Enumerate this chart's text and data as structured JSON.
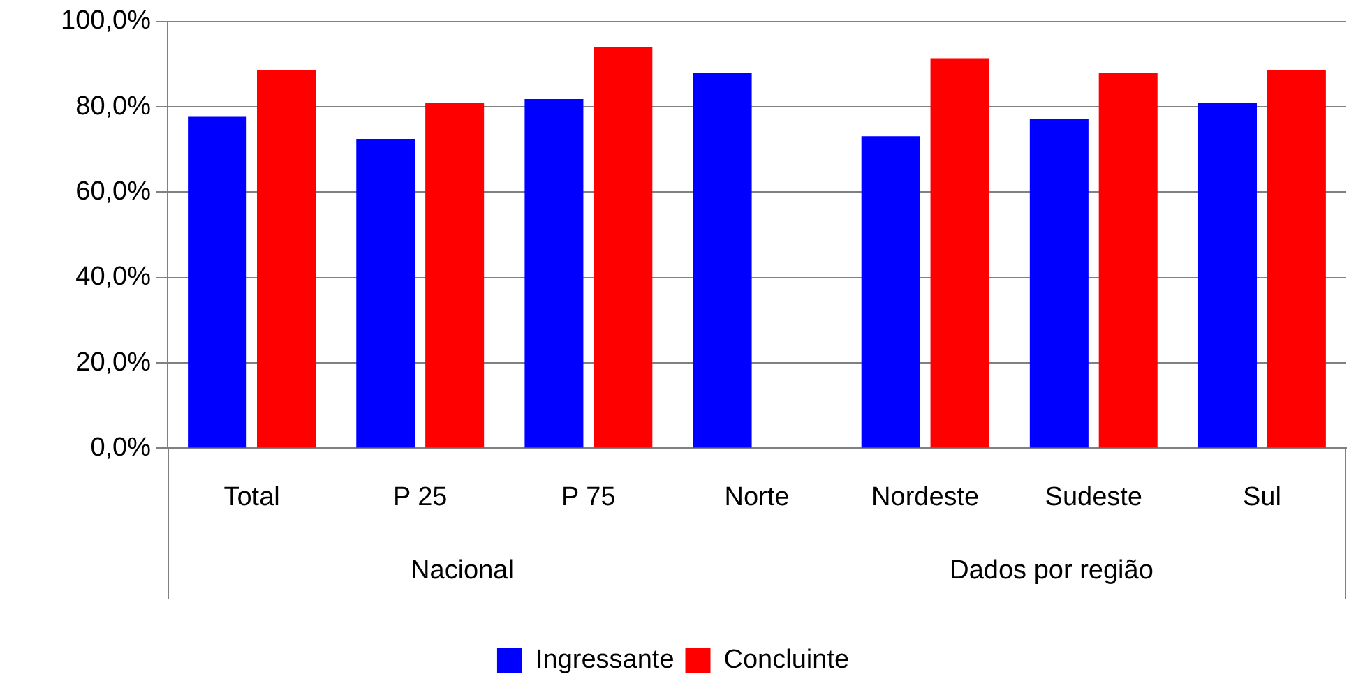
{
  "chart_data": {
    "type": "bar",
    "categories": [
      "Total",
      "P 25",
      "P 75",
      "Norte",
      "Nordeste",
      "Sudeste",
      "Sul"
    ],
    "series": [
      {
        "name": "Ingressante",
        "color": "#0000ff",
        "values": [
          77.8,
          72.5,
          81.8,
          88.0,
          73.1,
          77.2,
          80.9
        ]
      },
      {
        "name": "Concluinte",
        "color": "#ff0000",
        "values": [
          88.6,
          80.9,
          94.1,
          null,
          91.4,
          88.0,
          88.6
        ]
      }
    ],
    "ylim": [
      0,
      100
    ],
    "yticks": [
      {
        "value": 0,
        "label": "0,0%"
      },
      {
        "value": 20,
        "label": "20,0%"
      },
      {
        "value": 40,
        "label": "40,0%"
      },
      {
        "value": 60,
        "label": "60,0%"
      },
      {
        "value": 80,
        "label": "80,0%"
      },
      {
        "value": 100,
        "label": "100,0%"
      }
    ],
    "grid": "y",
    "legend": "bottom",
    "annotations": [
      "Nacional",
      "Dados por região"
    ]
  }
}
